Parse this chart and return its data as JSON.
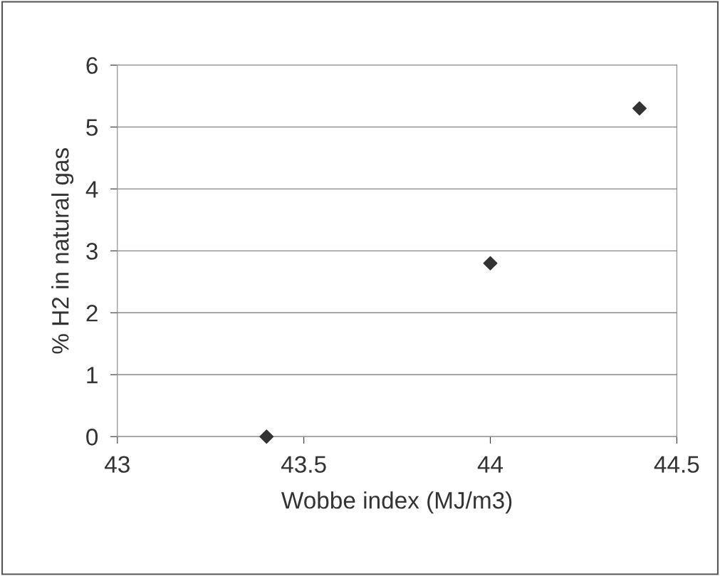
{
  "chart_data": {
    "type": "scatter",
    "xlabel": "Wobbe index (MJ/m3)",
    "ylabel": "% H2 in natural gas",
    "x": [
      43.4,
      44.0,
      44.4
    ],
    "values": [
      0,
      2.8,
      5.3
    ],
    "color": "#333333",
    "marker": "diamond",
    "xlim": [
      43,
      44.5
    ],
    "xticks": [
      43,
      43.5,
      44,
      44.5
    ],
    "ylim": [
      0,
      6
    ],
    "yticks": [
      0,
      1,
      2,
      3,
      4,
      5,
      6
    ],
    "grid": "y",
    "legend": false
  }
}
